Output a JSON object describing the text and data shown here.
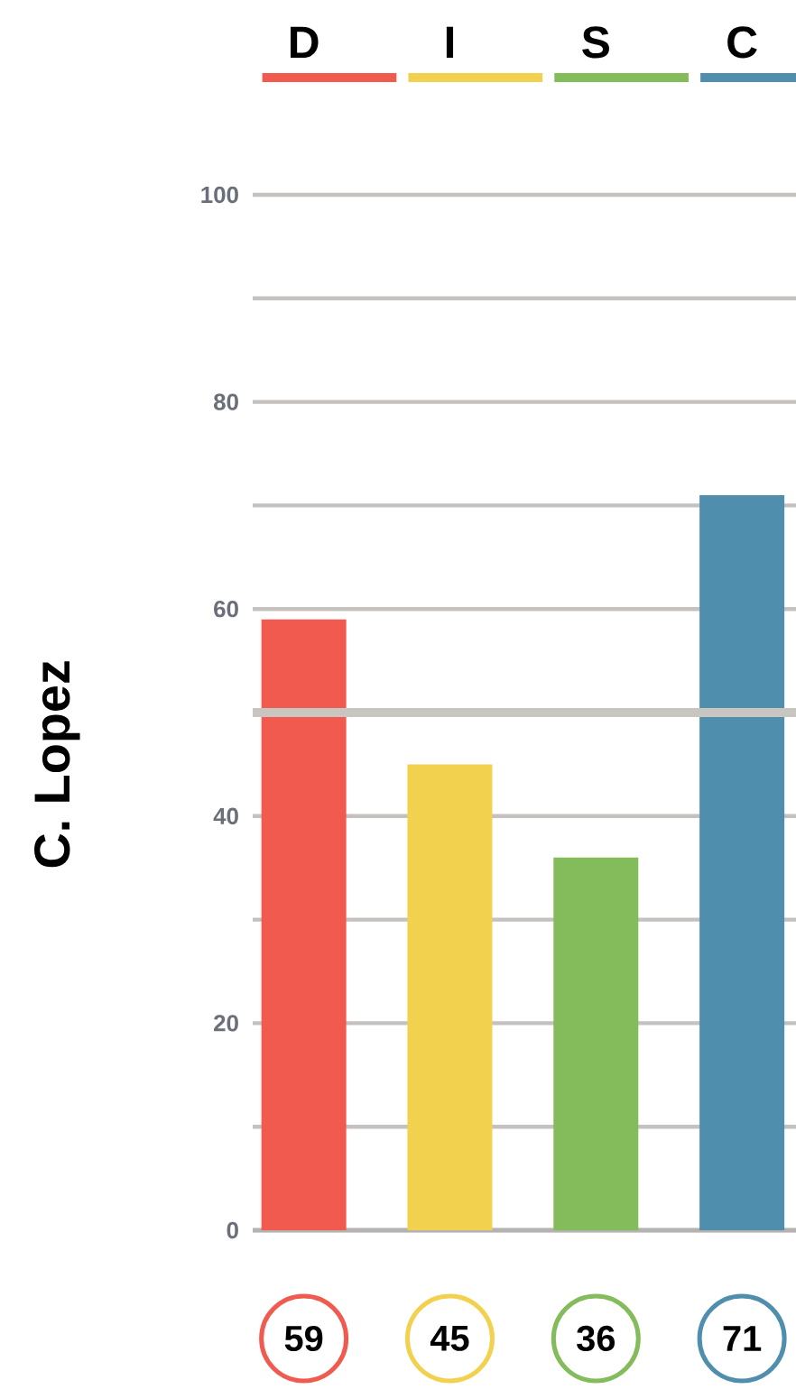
{
  "chart_data": {
    "type": "bar",
    "ylabel": "C. Lopez",
    "categories": [
      "D",
      "I",
      "S",
      "C"
    ],
    "values": [
      59,
      45,
      36,
      71
    ],
    "colors": [
      "#f15a4f",
      "#f2d14f",
      "#84bb5b",
      "#4f8fad"
    ],
    "ylim": [
      0,
      100
    ],
    "yticks": [
      0,
      {
        "value": 10,
        "label": null
      },
      20,
      {
        "value": 30,
        "label": null
      },
      40,
      {
        "value": 50,
        "label": null
      },
      60,
      {
        "value": 70,
        "label": null
      },
      80,
      {
        "value": 90,
        "label": null
      },
      100
    ],
    "grid": "y",
    "data_labels": true,
    "ref_lines": [
      {
        "axis": "y",
        "value": 50,
        "label": null,
        "color": "#c9c5c1"
      }
    ]
  }
}
